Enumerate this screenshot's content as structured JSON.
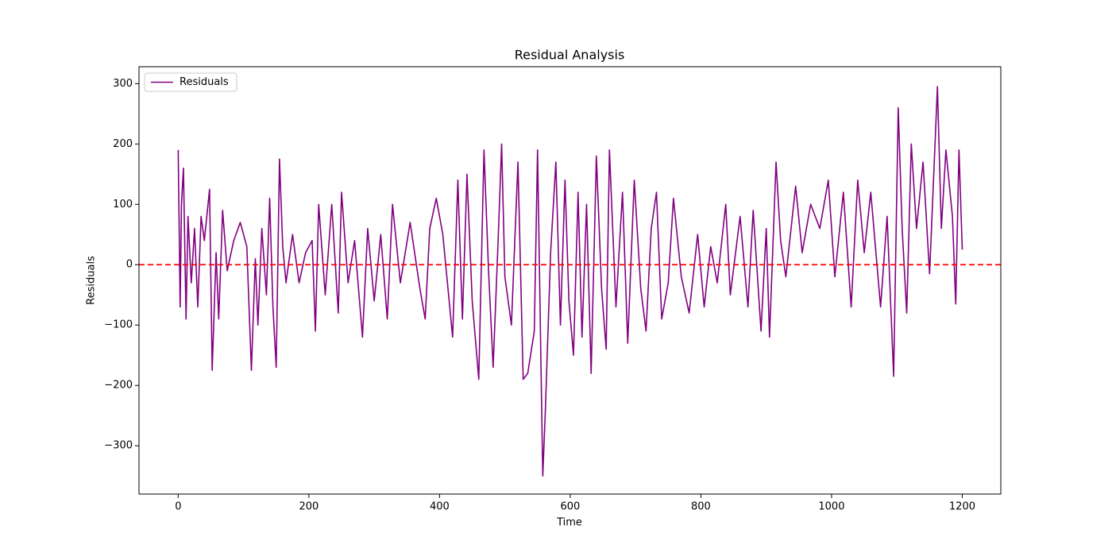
{
  "chart_data": {
    "type": "line",
    "title": "Residual Analysis",
    "xlabel": "Time",
    "ylabel": "Residuals",
    "x": [
      0,
      3,
      5,
      8,
      12,
      15,
      20,
      25,
      30,
      35,
      40,
      48,
      52,
      58,
      62,
      68,
      75,
      85,
      95,
      105,
      112,
      118,
      122,
      128,
      135,
      140,
      145,
      150,
      155,
      160,
      165,
      175,
      185,
      195,
      205,
      210,
      215,
      225,
      235,
      245,
      250,
      260,
      270,
      282,
      290,
      300,
      310,
      320,
      328,
      340,
      355,
      370,
      378,
      385,
      395,
      405,
      420,
      428,
      435,
      442,
      450,
      460,
      468,
      475,
      482,
      490,
      495,
      500,
      510,
      520,
      528,
      535,
      545,
      550,
      555,
      558,
      562,
      570,
      578,
      585,
      592,
      598,
      605,
      612,
      618,
      625,
      632,
      640,
      648,
      655,
      660,
      670,
      680,
      688,
      698,
      708,
      716,
      724,
      732,
      740,
      750,
      758,
      770,
      782,
      795,
      805,
      815,
      825,
      838,
      845,
      860,
      872,
      880,
      892,
      900,
      905,
      915,
      922,
      930,
      945,
      955,
      968,
      982,
      995,
      1005,
      1018,
      1030,
      1040,
      1050,
      1060,
      1075,
      1085,
      1095,
      1102,
      1108,
      1115,
      1122,
      1130,
      1140,
      1150,
      1162,
      1168,
      1175,
      1185,
      1190,
      1195,
      1200
    ],
    "series": [
      {
        "name": "Residuals",
        "color": "#800080",
        "values": [
          190,
          -70,
          100,
          160,
          -90,
          80,
          -30,
          60,
          -70,
          80,
          40,
          125,
          -175,
          20,
          -90,
          90,
          -10,
          40,
          70,
          30,
          -175,
          10,
          -100,
          60,
          -50,
          110,
          -70,
          -170,
          175,
          30,
          -30,
          50,
          -30,
          20,
          40,
          -110,
          100,
          -50,
          100,
          -80,
          120,
          -30,
          40,
          -120,
          60,
          -60,
          50,
          -90,
          100,
          -30,
          70,
          -40,
          -90,
          60,
          110,
          50,
          -120,
          140,
          -90,
          150,
          -60,
          -190,
          190,
          -10,
          -170,
          50,
          200,
          -20,
          -100,
          170,
          -190,
          -180,
          -110,
          190,
          -150,
          -350,
          -240,
          20,
          170,
          -100,
          140,
          -60,
          -150,
          120,
          -120,
          100,
          -180,
          180,
          -40,
          -140,
          190,
          -70,
          120,
          -130,
          140,
          -40,
          -110,
          60,
          120,
          -90,
          -30,
          110,
          -20,
          -80,
          50,
          -70,
          30,
          -30,
          100,
          -50,
          80,
          -70,
          90,
          -110,
          60,
          -120,
          170,
          40,
          -20,
          130,
          20,
          100,
          60,
          140,
          -20,
          120,
          -70,
          140,
          20,
          120,
          -70,
          80,
          -185,
          260,
          60,
          -80,
          200,
          60,
          170,
          -15,
          295,
          60,
          190,
          80,
          -65,
          190,
          25
        ]
      }
    ],
    "hline": {
      "value": 0,
      "color": "#ff0000"
    },
    "xlim": [
      -60,
      1259
    ],
    "ylim": [
      -380,
      328
    ],
    "xticks": [
      0,
      200,
      400,
      600,
      800,
      1000,
      1200
    ],
    "yticks": [
      {
        "value": -300,
        "label": "−300"
      },
      {
        "value": -200,
        "label": "−200"
      },
      {
        "value": -100,
        "label": "−100"
      },
      0,
      100,
      200,
      300
    ],
    "legend": "upper left",
    "grid": false
  }
}
